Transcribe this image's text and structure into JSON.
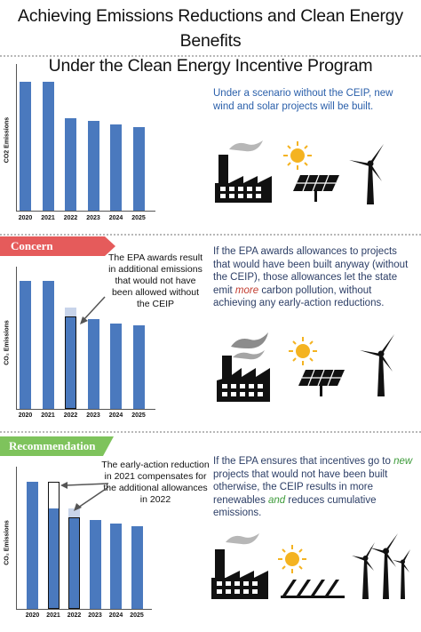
{
  "title_line1": "Achieving Emissions Reductions and Clean Energy Benefits",
  "title_line2": "Under the Clean Energy Incentive Program",
  "colors": {
    "bar": "#4a79be",
    "ghost": "#c8d4ea",
    "concern": "#e55b5b",
    "recommendation": "#7ec35c",
    "text_blue": "#2a5faa",
    "emphasis_red": "#c23b2e",
    "emphasis_green": "#3d9b3a",
    "sun": "#f4b321"
  },
  "section1": {
    "text": "Under a scenario without the CEIP, new wind and solar projects will be built."
  },
  "section2": {
    "label": "Concern",
    "annotation": "The EPA awards result in additional emissions that would not have been allowed without the CEIP",
    "text_before": "If the EPA awards allowances to projects that would have been built anyway (without the CEIP), those allowances let the state emit ",
    "text_emphasis": "more",
    "text_after": " carbon pollution, without achieving any early-action reductions."
  },
  "section3": {
    "label": "Recommendation",
    "annotation": "The early-action reduction in 2021 compensates for the additional allowances in 2022",
    "text_before": "If the EPA ensures that incentives go to ",
    "text_emphasis1": "new",
    "text_middle": " projects that would not have been built otherwise, the CEIP results in more renewables ",
    "text_emphasis2": "and",
    "text_after": " reduces cumulative emissions."
  },
  "icons": [
    "factory-icon",
    "sun-icon",
    "solar-panel-icon",
    "wind-turbine-icon"
  ],
  "chart_data": [
    {
      "type": "bar",
      "ylabel": "CO2 Emissions",
      "categories": [
        "2020",
        "2021",
        "2022",
        "2023",
        "2024",
        "2025"
      ],
      "values": [
        100,
        100,
        72,
        70,
        67,
        65
      ]
    },
    {
      "type": "bar",
      "ylabel": "CO₂ Emissions",
      "categories": [
        "2020",
        "2021",
        "2022",
        "2023",
        "2024",
        "2025"
      ],
      "values": [
        100,
        100,
        72,
        70,
        67,
        65
      ],
      "additional_allowances": {
        "2022": 7
      }
    },
    {
      "type": "bar",
      "ylabel": "CO₂ Emissions",
      "categories": [
        "2020",
        "2021",
        "2022",
        "2023",
        "2024",
        "2025"
      ],
      "values": [
        100,
        79,
        72,
        70,
        67,
        65
      ],
      "early_action_reduction": {
        "2021": 21
      },
      "additional_allowances": {
        "2022": 7
      }
    }
  ]
}
